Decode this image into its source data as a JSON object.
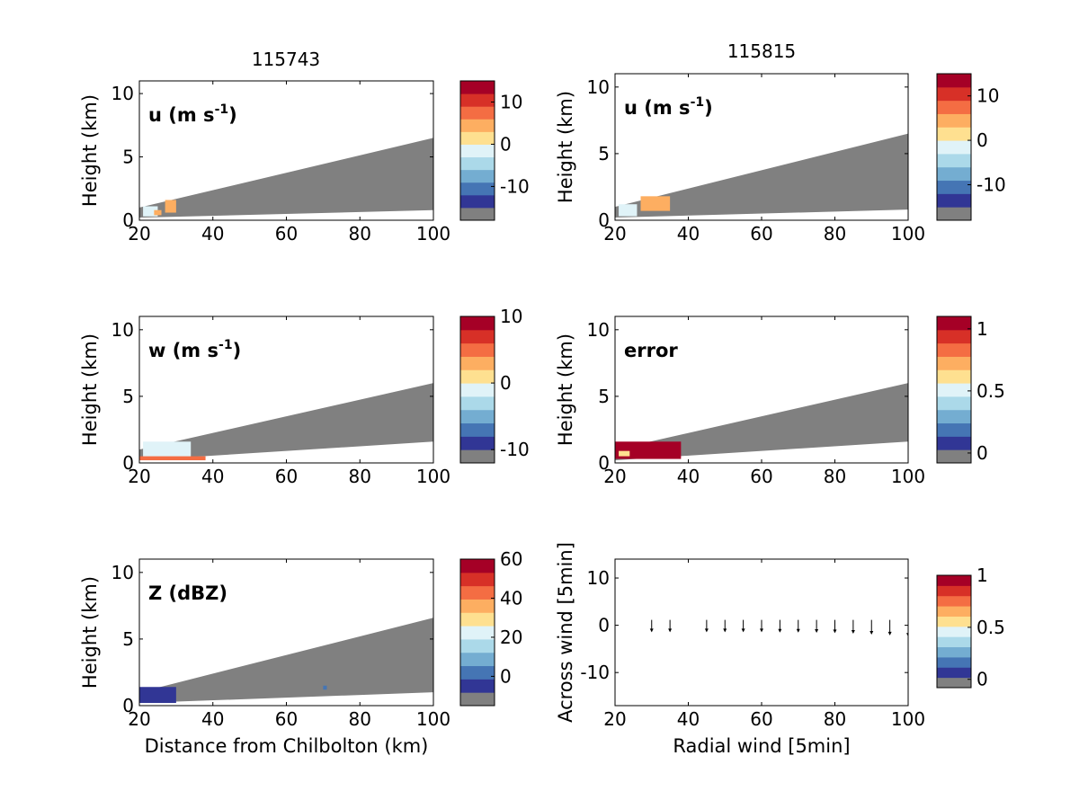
{
  "figure": {
    "col_titles": [
      "115743",
      "115815"
    ]
  },
  "colors": {
    "background_gray": "#808080",
    "palette": [
      "#313695",
      "#4575b4",
      "#74add1",
      "#abd9e9",
      "#e0f3f8",
      "#fee090",
      "#fdae61",
      "#f46d43",
      "#d73027",
      "#a50026"
    ]
  },
  "chart_data": [
    {
      "id": "u-115743",
      "type": "heatmap",
      "label_main": "u (m s",
      "label_sup": "-1",
      "label_close": ")",
      "ylabel": "Height (km)",
      "xlabel": "",
      "xlim": [
        20,
        100
      ],
      "ylim": [
        0,
        11
      ],
      "xticks": [
        20,
        40,
        60,
        80,
        100
      ],
      "yticks": [
        0,
        5,
        10
      ],
      "cbar_range": [
        -18,
        15
      ],
      "cbar_ticks": [
        10,
        0,
        -10
      ],
      "beam": {
        "x": [
          20,
          100
        ],
        "bottom": [
          0.2,
          0.8
        ],
        "top": [
          1.0,
          6.5
        ]
      },
      "features": [
        {
          "x": 21,
          "y": 0.3,
          "w": 4,
          "h": 0.8,
          "value": -3
        },
        {
          "x": 27,
          "y": 0.6,
          "w": 3,
          "h": 1.0,
          "value": 5
        },
        {
          "x": 24,
          "y": 0.4,
          "w": 2,
          "h": 0.4,
          "value": 3
        }
      ]
    },
    {
      "id": "u-115815",
      "type": "heatmap",
      "label_main": "u (m s",
      "label_sup": "-1",
      "label_close": ")",
      "ylabel": "Height (km)",
      "xlabel": "",
      "xlim": [
        20,
        100
      ],
      "ylim": [
        0,
        11
      ],
      "xticks": [
        20,
        40,
        60,
        80,
        100
      ],
      "yticks": [
        0,
        5,
        10
      ],
      "cbar_range": [
        -18,
        15
      ],
      "cbar_ticks": [
        10,
        0,
        -10
      ],
      "beam": {
        "x": [
          20,
          100
        ],
        "bottom": [
          0.2,
          0.8
        ],
        "top": [
          1.0,
          6.5
        ]
      },
      "features": [
        {
          "x": 21,
          "y": 0.3,
          "w": 5,
          "h": 0.9,
          "value": -3
        },
        {
          "x": 27,
          "y": 0.7,
          "w": 8,
          "h": 1.1,
          "value": 5
        }
      ]
    },
    {
      "id": "w-115743",
      "type": "heatmap",
      "label_main": "w (m s",
      "label_sup": "-1",
      "label_close": ")",
      "ylabel": "Height (km)",
      "xlabel": "",
      "xlim": [
        20,
        100
      ],
      "ylim": [
        0,
        11
      ],
      "xticks": [
        20,
        40,
        60,
        80,
        100
      ],
      "yticks": [
        0,
        5,
        10
      ],
      "cbar_range": [
        -12,
        10
      ],
      "cbar_ticks": [
        10,
        0,
        -10
      ],
      "beam": {
        "x": [
          20,
          100
        ],
        "bottom": [
          0.2,
          1.6
        ],
        "top": [
          1.0,
          6.0
        ]
      },
      "features": [
        {
          "x": 21,
          "y": 0.4,
          "w": 13,
          "h": 1.2,
          "value": -2
        },
        {
          "x": 20,
          "y": 0.2,
          "w": 18,
          "h": 0.3,
          "value": 4
        }
      ]
    },
    {
      "id": "error-115815",
      "type": "heatmap",
      "label_main": "error",
      "label_sup": "",
      "label_close": "",
      "ylabel": "Height (km)",
      "xlabel": "",
      "xlim": [
        20,
        100
      ],
      "ylim": [
        0,
        11
      ],
      "xticks": [
        20,
        40,
        60,
        80,
        100
      ],
      "yticks": [
        0,
        5,
        10
      ],
      "cbar_range": [
        -0.08,
        1.1
      ],
      "cbar_ticks": [
        1,
        0.5,
        0
      ],
      "beam": {
        "x": [
          20,
          100
        ],
        "bottom": [
          0.2,
          1.6
        ],
        "top": [
          1.0,
          6.0
        ]
      },
      "features": [
        {
          "x": 20,
          "y": 0.3,
          "w": 18,
          "h": 1.3,
          "value": 1.05
        },
        {
          "x": 21,
          "y": 0.5,
          "w": 3,
          "h": 0.4,
          "value": 0.6
        }
      ]
    },
    {
      "id": "Z-115743",
      "type": "heatmap",
      "label_main": "Z (dBZ)",
      "label_sup": "",
      "label_close": "",
      "ylabel": "Height (km)",
      "xlabel": "Distance from Chilbolton (km)",
      "xlim": [
        20,
        100
      ],
      "ylim": [
        0,
        11
      ],
      "xticks": [
        20,
        40,
        60,
        80,
        100
      ],
      "yticks": [
        0,
        5,
        10
      ],
      "cbar_range": [
        -15,
        60
      ],
      "cbar_ticks": [
        60,
        40,
        20,
        0
      ],
      "beam": {
        "x": [
          20,
          100
        ],
        "bottom": [
          0.2,
          1.0
        ],
        "top": [
          1.0,
          6.6
        ]
      },
      "features": [
        {
          "x": 20,
          "y": 0.2,
          "w": 10,
          "h": 1.2,
          "value": -10
        },
        {
          "x": 70,
          "y": 1.2,
          "w": 1,
          "h": 0.3,
          "value": -5
        }
      ]
    },
    {
      "id": "wind-115815",
      "type": "quiver",
      "label_main": "",
      "label_sup": "",
      "label_close": "",
      "ylabel": "Across wind [5min]",
      "xlabel": "Radial wind [5min]",
      "xlim": [
        20,
        100
      ],
      "ylim": [
        -17,
        14
      ],
      "xticks": [
        20,
        40,
        60,
        80,
        100
      ],
      "yticks": [
        10,
        0,
        -10
      ],
      "cbar_range": [
        -0.08,
        1.0
      ],
      "cbar_ticks": [
        1,
        0.5,
        0
      ],
      "arrows": [
        {
          "x": 30,
          "u": 0,
          "v": -1.5
        },
        {
          "x": 35,
          "u": 0,
          "v": -1.5
        },
        {
          "x": 45,
          "u": 0,
          "v": -1.5
        },
        {
          "x": 50,
          "u": 0,
          "v": -1.5
        },
        {
          "x": 55,
          "u": 0,
          "v": -1.5
        },
        {
          "x": 60,
          "u": 0,
          "v": -1.5
        },
        {
          "x": 65,
          "u": 0,
          "v": -1.6
        },
        {
          "x": 70,
          "u": 0,
          "v": -1.6
        },
        {
          "x": 75,
          "u": 0,
          "v": -1.7
        },
        {
          "x": 80,
          "u": 0,
          "v": -1.8
        },
        {
          "x": 85,
          "u": 0,
          "v": -2.0
        },
        {
          "x": 90,
          "u": 0,
          "v": -2.3
        },
        {
          "x": 95,
          "u": 0,
          "v": -2.6
        },
        {
          "x": 100,
          "u": 0,
          "v": -3.0
        }
      ]
    }
  ]
}
